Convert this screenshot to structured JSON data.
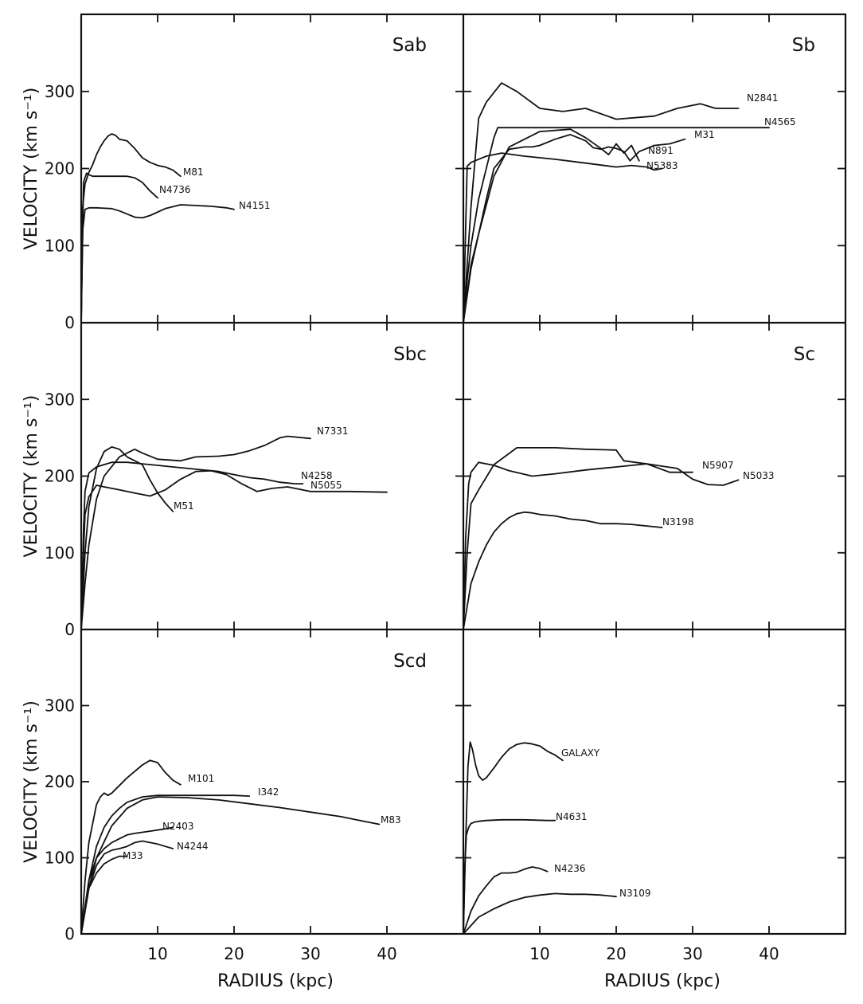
{
  "chart_data": {
    "type": "line",
    "ylabel": "VELOCITY (km s⁻¹)",
    "xlabel": "RADIUS (kpc)",
    "xlim": [
      0,
      50
    ],
    "ylim": [
      0,
      400
    ],
    "x_ticks": [
      10,
      20,
      30,
      40
    ],
    "y_ticks": [
      0,
      100,
      200,
      300
    ],
    "panels": [
      {
        "title": "Sab",
        "series": [
          {
            "name": "M81",
            "label": "M81",
            "x": [
              0,
              0.2,
              0.5,
              1,
              1.5,
              2,
              2.5,
              3,
              3.5,
              4,
              4.5,
              5,
              6,
              7,
              8,
              9,
              10,
              11,
              12,
              13
            ],
            "y": [
              0,
              150,
              180,
              195,
              205,
              218,
              228,
              236,
              242,
              245,
              243,
              238,
              236,
              226,
              214,
              208,
              204,
              202,
              198,
              190
            ]
          },
          {
            "name": "N4736",
            "label": "N4736",
            "x": [
              0,
              0.3,
              0.7,
              1,
              1.5,
              2,
              3,
              4,
              5,
              6,
              7,
              8,
              9,
              10
            ],
            "y": [
              0,
              182,
              194,
              192,
              190,
              190,
              190,
              190,
              190,
              190,
              188,
              182,
              171,
              162
            ]
          },
          {
            "name": "N4151",
            "label": "N4151",
            "x": [
              0,
              0.2,
              0.5,
              1,
              2,
              4,
              5,
              6,
              7,
              8,
              9,
              11,
              13,
              15,
              17,
              19,
              20
            ],
            "y": [
              0,
              120,
              147,
              149,
              149,
              148,
              145,
              141,
              137,
              136,
              139,
              148,
              153,
              152,
              151,
              149,
              147
            ]
          }
        ],
        "labels": []
      },
      {
        "title": "Sb",
        "series": [
          {
            "name": "N2841",
            "label": "N2841",
            "x": [
              0,
              1,
              2,
              3,
              5,
              7,
              10,
              13,
              16,
              20,
              25,
              28,
              31,
              33,
              36
            ],
            "y": [
              0,
              150,
              265,
              286,
              311,
              300,
              278,
              274,
              278,
              264,
              268,
              278,
              284,
              278,
              278
            ]
          },
          {
            "name": "N4565",
            "label": "N4565",
            "x": [
              0,
              0.5,
              1,
              2,
              4,
              4.5,
              10,
              20,
              40
            ],
            "y": [
              0,
              55,
              100,
              160,
              240,
              253,
              253,
              253,
              253
            ]
          },
          {
            "name": "M31",
            "label": "M31",
            "x": [
              0,
              1,
              2,
              3,
              4,
              6,
              8,
              9,
              10,
              12,
              14,
              16,
              17,
              18,
              19,
              20,
              21,
              21.8,
              23,
              25,
              27,
              29
            ],
            "y": [
              0,
              70,
              115,
              160,
              200,
              225,
              228,
              228,
              230,
              238,
              244,
              236,
              227,
              225,
              228,
              226,
              222,
              210,
              222,
              230,
              232,
              238
            ]
          },
          {
            "name": "N891",
            "label": "N891",
            "x": [
              0,
              1,
              2,
              4,
              6,
              10,
              14,
              16,
              18,
              19,
              20,
              21,
              22,
              23
            ],
            "y": [
              0,
              75,
              115,
              190,
              228,
              248,
              251,
              240,
              226,
              218,
              232,
              220,
              230,
              210
            ]
          },
          {
            "name": "N5383",
            "label": "N5383",
            "x": [
              0,
              0.5,
              1,
              2,
              3,
              5,
              8,
              12,
              16,
              20,
              22,
              24,
              25,
              26
            ],
            "y": [
              0,
              203,
              208,
              212,
              216,
              220,
              216,
              212,
              207,
              202,
              204,
              202,
              198,
              200
            ]
          }
        ],
        "labels": []
      },
      {
        "title": "Sbc",
        "series": [
          {
            "name": "N7331",
            "label": "N7331",
            "x": [
              0,
              0.5,
              1,
              2,
              3,
              5,
              7,
              8,
              10,
              13,
              15,
              18,
              20,
              22,
              24,
              26,
              27,
              29,
              30
            ],
            "y": [
              0,
              60,
              110,
              170,
              200,
              225,
              235,
              230,
              222,
              220,
              225,
              226,
              228,
              233,
              240,
              250,
              252,
              250,
              249
            ]
          },
          {
            "name": "N4258",
            "label": "N4258",
            "x": [
              0,
              0.3,
              0.5,
              1,
              2,
              4,
              6,
              8,
              10,
              12,
              14,
              16,
              18,
              20,
              22,
              24,
              26,
              28,
              29
            ],
            "y": [
              0,
              130,
              180,
              204,
              212,
              218,
              218,
              216,
              214,
              212,
              210,
              208,
              206,
              202,
              198,
              196,
              192,
              190,
              190
            ]
          },
          {
            "name": "N5055",
            "label": "N5055",
            "x": [
              0,
              0.3,
              0.5,
              1,
              2,
              3,
              5,
              7,
              9,
              11,
              13,
              15,
              17,
              19,
              21,
              23,
              25,
              27,
              30,
              35,
              40
            ],
            "y": [
              0,
              100,
              150,
              173,
              188,
              186,
              182,
              178,
              174,
              182,
              196,
              206,
              207,
              202,
              190,
              180,
              184,
              186,
              180,
              180,
              179
            ]
          },
          {
            "name": "M51",
            "label": "M51",
            "x": [
              0,
              0.5,
              1,
              2,
              3,
              4,
              5,
              6,
              8,
              9,
              10,
              11,
              12
            ],
            "y": [
              0,
              100,
              160,
              210,
              232,
              238,
              235,
              225,
              215,
              195,
              178,
              165,
              154
            ]
          }
        ],
        "labels": []
      },
      {
        "title": "Sc",
        "series": [
          {
            "name": "N5907",
            "label": "N5907",
            "x": [
              0,
              0.5,
              1,
              2,
              4,
              7,
              12,
              16,
              20,
              21,
              24,
              27,
              30
            ],
            "y": [
              0,
              100,
              164,
              182,
              215,
              237,
              237,
              235,
              234,
              220,
              216,
              205,
              205
            ]
          },
          {
            "name": "N5033",
            "label": "N5033",
            "x": [
              0,
              0.3,
              0.7,
              1,
              2,
              4,
              6,
              9,
              12,
              16,
              20,
              24,
              28,
              30,
              32,
              34,
              36
            ],
            "y": [
              0,
              120,
              190,
              205,
              218,
              214,
              207,
              200,
              203,
              208,
              212,
              216,
              210,
              196,
              189,
              188,
              195
            ]
          },
          {
            "name": "N3198",
            "label": "N3198",
            "x": [
              0,
              1,
              2,
              3,
              4,
              5,
              6,
              7,
              8,
              9,
              10,
              12,
              14,
              16,
              18,
              20,
              22,
              24,
              26
            ],
            "y": [
              0,
              60,
              88,
              110,
              127,
              138,
              146,
              151,
              153,
              152,
              150,
              148,
              144,
              142,
              138,
              138,
              137,
              135,
              133
            ]
          }
        ],
        "labels": []
      },
      {
        "title": "Scd",
        "series": [
          {
            "name": "M101",
            "label": "M101",
            "x": [
              0,
              0.5,
              1,
              2,
              2.5,
              3,
              3.5,
              4,
              6,
              8,
              9,
              10,
              11,
              12,
              13
            ],
            "y": [
              0,
              70,
              120,
              170,
              180,
              185,
              182,
              185,
              205,
              222,
              228,
              225,
              212,
              202,
              196
            ]
          },
          {
            "name": "I342",
            "label": "I342",
            "x": [
              0,
              1,
              2,
              3,
              4,
              5,
              6,
              8,
              10,
              12,
              15,
              20,
              22
            ],
            "y": [
              0,
              70,
              115,
              140,
              155,
              165,
              173,
              180,
              182,
              182,
              182,
              182,
              181
            ]
          },
          {
            "name": "M83",
            "label": "M83",
            "x": [
              0,
              1,
              2,
              4,
              6,
              8,
              10,
              14,
              18,
              22,
              26,
              30,
              34,
              37,
              39
            ],
            "y": [
              0,
              60,
              100,
              142,
              165,
              176,
              180,
              179,
              176,
              171,
              166,
              160,
              154,
              148,
              144
            ]
          },
          {
            "name": "N2403",
            "label": "N2403",
            "x": [
              0,
              1,
              2,
              3,
              4,
              5,
              6,
              7,
              9,
              11,
              12
            ],
            "y": [
              0,
              70,
              100,
              112,
              120,
              125,
              130,
              132,
              135,
              138,
              140
            ]
          },
          {
            "name": "N4244",
            "label": "N4244",
            "x": [
              0,
              1,
              2,
              3,
              4,
              5,
              6,
              7,
              8,
              9,
              10,
              11,
              12
            ],
            "y": [
              0,
              60,
              90,
              105,
              110,
              112,
              115,
              120,
              122,
              120,
              118,
              115,
              112
            ]
          },
          {
            "name": "M33",
            "label": "M33",
            "x": [
              0,
              1,
              2,
              3,
              4,
              5,
              6
            ],
            "y": [
              0,
              60,
              80,
              92,
              98,
              102,
              102
            ]
          }
        ],
        "labels": []
      },
      {
        "title": "",
        "series": [
          {
            "name": "GALAXY",
            "label": "GALAXY",
            "x": [
              0,
              0.3,
              0.6,
              0.9,
              1.2,
              1.6,
              2,
              2.5,
              3,
              4,
              5,
              6,
              7,
              8,
              8.8,
              10,
              11,
              12,
              13
            ],
            "y": [
              0,
              120,
              220,
              252,
              242,
              222,
              208,
              202,
              205,
              218,
              232,
              243,
              249,
              251,
              250,
              247,
              240,
              235,
              228
            ]
          },
          {
            "name": "N4631",
            "label": "N4631",
            "x": [
              0,
              0.2,
              0.4,
              0.7,
              1,
              1.5,
              2,
              3,
              5,
              8,
              11,
              12
            ],
            "y": [
              0,
              90,
              130,
              140,
              145,
              147,
              148,
              149,
              150,
              150,
              149,
              149
            ]
          },
          {
            "name": "N4236",
            "label": "N4236",
            "x": [
              0,
              1,
              2,
              3,
              4,
              5,
              6,
              7,
              8,
              9,
              10,
              11
            ],
            "y": [
              0,
              30,
              50,
              63,
              75,
              80,
              80,
              81,
              85,
              88,
              86,
              82
            ]
          },
          {
            "name": "N3109",
            "label": "N3109",
            "x": [
              0,
              2,
              4,
              6,
              8,
              10,
              12,
              14,
              16,
              18,
              20
            ],
            "y": [
              0,
              22,
              33,
              42,
              48,
              51,
              53,
              52,
              52,
              51,
              49
            ]
          }
        ],
        "labels": []
      }
    ]
  }
}
